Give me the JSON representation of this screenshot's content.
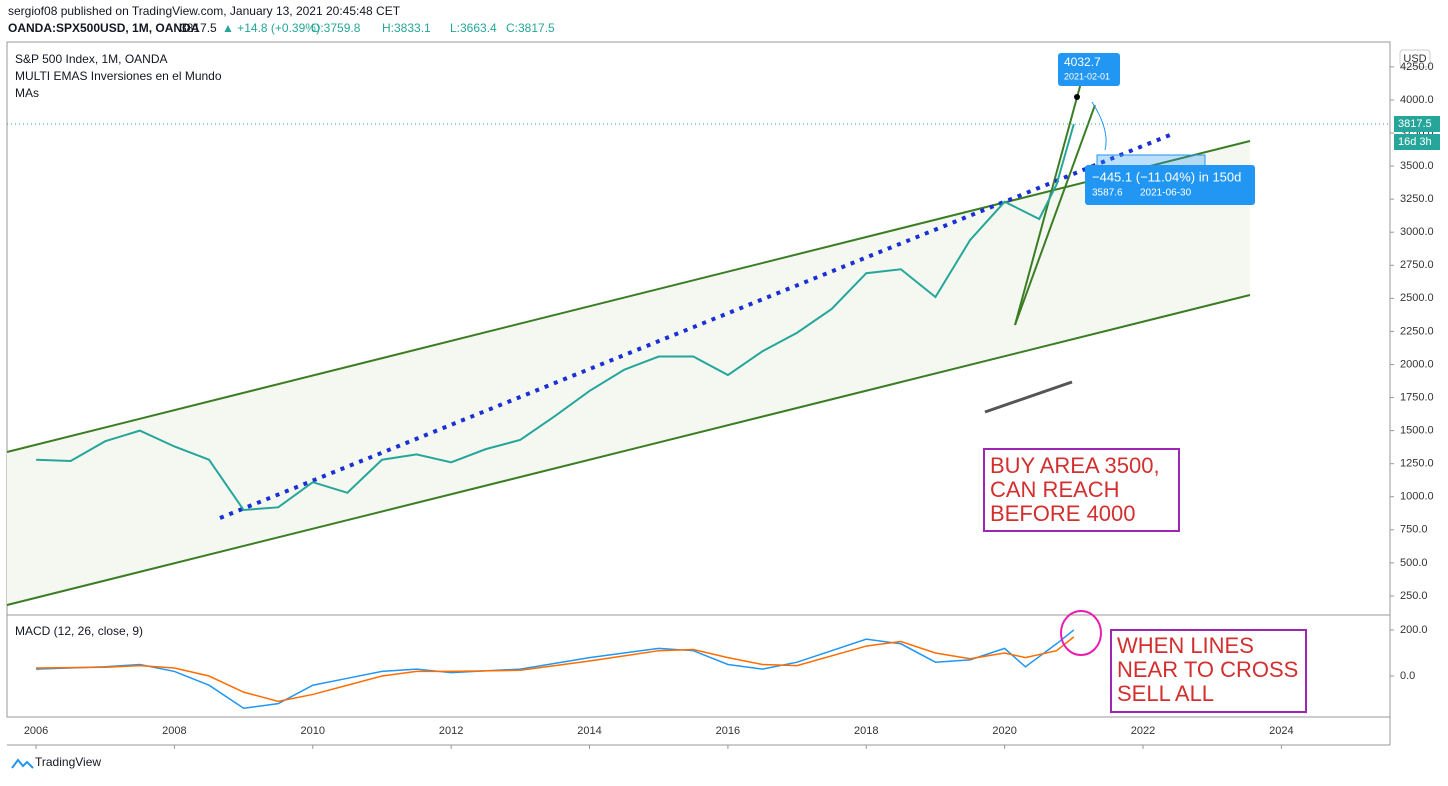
{
  "header": {
    "publisher": "sergiof08 published on TradingView.com, January 13, 2021 20:45:48 CET",
    "symbol": "OANDA:SPX500USD, 1M, OANDA",
    "last": "3817.5",
    "change": "▲ +14.8 (+0.39%)",
    "open": "O:3759.8",
    "high": "H:3833.1",
    "low": "L:3663.4",
    "close": "C:3817.5"
  },
  "legend": [
    "S&P 500 Index, 1M, OANDA",
    "MULTI EMAS Inversiones en el Mundo",
    "MAs"
  ],
  "currency": "USD",
  "price_tag": {
    "price": "3817.5",
    "countdown": "16d 3h"
  },
  "callout": {
    "price": "4032.7",
    "date": "2021-02-01"
  },
  "measure": {
    "change": "−445.1 (−11.04%) in 150d",
    "price": "3587.6",
    "date": "2021-06-30"
  },
  "notes": {
    "buy": [
      "BUY AREA 3500,",
      "CAN REACH",
      "BEFORE 4000"
    ],
    "sell": [
      "WHEN LINES",
      "NEAR TO CROSS",
      "SELL ALL"
    ]
  },
  "footer": "TradingView",
  "chart_data": [
    {
      "type": "line",
      "title": "S&P 500 Index, 1M, OANDA",
      "x": [
        2006.0,
        2006.5,
        2007.0,
        2007.5,
        2008.0,
        2008.5,
        2009.0,
        2009.5,
        2010.0,
        2010.5,
        2011.0,
        2011.5,
        2012.0,
        2012.5,
        2013.0,
        2013.5,
        2014.0,
        2014.5,
        2015.0,
        2015.5,
        2016.0,
        2016.5,
        2017.0,
        2017.5,
        2018.0,
        2018.5,
        2019.0,
        2019.5,
        2020.0,
        2020.5,
        2020.75,
        2021.0
      ],
      "series": [
        {
          "name": "Close",
          "color": "#26a69a",
          "values": [
            1280,
            1270,
            1420,
            1500,
            1380,
            1280,
            900,
            920,
            1110,
            1030,
            1280,
            1320,
            1260,
            1360,
            1430,
            1610,
            1800,
            1960,
            2060,
            2060,
            1920,
            2100,
            2240,
            2420,
            2690,
            2720,
            2510,
            2940,
            3230,
            3100,
            3360,
            3817.5
          ]
        }
      ],
      "xlim": [
        2005.58,
        2025.57
      ],
      "xticks": [
        2006,
        2008,
        2010,
        2012,
        2014,
        2016,
        2018,
        2020,
        2022,
        2024
      ],
      "ylim": [
        106,
        4438
      ],
      "yticks": [
        {
          "value": 250,
          "label": "250.0"
        },
        {
          "value": 500,
          "label": "500.0"
        },
        {
          "value": 750,
          "label": "750.0"
        },
        {
          "value": 1000,
          "label": "1000.0"
        },
        {
          "value": 1250,
          "label": "1250.0"
        },
        {
          "value": 1500,
          "label": "1500.0"
        },
        {
          "value": 1750,
          "label": "1750.0"
        },
        {
          "value": 2000,
          "label": "2000.0"
        },
        {
          "value": 2250,
          "label": "2250.0"
        },
        {
          "value": 2500,
          "label": "2500.0"
        },
        {
          "value": 2750,
          "label": "2750.0"
        },
        {
          "value": 3000,
          "label": "3000.0"
        },
        {
          "value": 3250,
          "label": "3250.0"
        },
        {
          "value": 3500,
          "label": "3500.0"
        },
        {
          "value": 3750,
          "label": "3750.0"
        },
        {
          "value": 4000,
          "label": "4000.0"
        },
        {
          "value": 4250,
          "label": "4250.0"
        }
      ]
    },
    {
      "type": "line",
      "title": "MACD (12, 26, close, 9)",
      "x": [
        2006.0,
        2007.0,
        2007.5,
        2008.0,
        2008.5,
        2009.0,
        2009.5,
        2010.0,
        2010.5,
        2011.0,
        2011.5,
        2012.0,
        2013.0,
        2014.0,
        2015.0,
        2015.5,
        2016.0,
        2016.5,
        2017.0,
        2018.0,
        2018.5,
        2019.0,
        2019.5,
        2020.0,
        2020.3,
        2020.75,
        2021.0
      ],
      "series": [
        {
          "name": "MACD",
          "color": "#2196f3",
          "values": [
            30,
            40,
            50,
            20,
            -40,
            -140,
            -120,
            -40,
            -10,
            20,
            30,
            15,
            30,
            80,
            120,
            110,
            50,
            30,
            60,
            160,
            140,
            60,
            70,
            120,
            40,
            140,
            200
          ]
        },
        {
          "name": "Signal",
          "color": "#ff6d00",
          "values": [
            35,
            38,
            45,
            35,
            0,
            -70,
            -110,
            -80,
            -40,
            0,
            20,
            20,
            25,
            65,
            110,
            115,
            80,
            50,
            45,
            130,
            150,
            100,
            75,
            100,
            80,
            110,
            170
          ]
        }
      ],
      "xlim": [
        2005.58,
        2025.57
      ],
      "ylim": [
        -178,
        265
      ],
      "yticks": [
        {
          "value": 0,
          "label": "0.0"
        },
        {
          "value": 200,
          "label": "200.0"
        }
      ]
    }
  ]
}
